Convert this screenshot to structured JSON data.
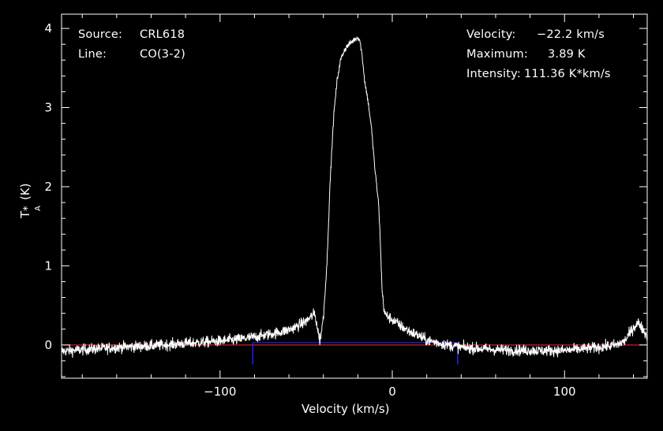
{
  "info_left": {
    "source_label": "Source:",
    "source_value": "CRL618",
    "line_label": "Line:",
    "line_value": "CO(3-2)"
  },
  "info_right": {
    "velocity_label": "Velocity:",
    "velocity_value": "−22.2 km/s",
    "maximum_label": "Maximum:",
    "maximum_value": "3.89 K",
    "intensity_label": "Intensity:",
    "intensity_value": "111.36 K*km/s"
  },
  "chart_data": {
    "type": "line",
    "xlabel": "Velocity (km/s)",
    "ylabel_main": "T",
    "ylabel_sup": "*",
    "ylabel_sub": "A",
    "ylabel_unit": "(K)",
    "xlim": [
      -192,
      148
    ],
    "ylim": [
      -0.42,
      4.18
    ],
    "x_ticks": [
      -100,
      0,
      100
    ],
    "x_tick_labels": [
      "−100",
      "0",
      "100"
    ],
    "y_ticks": [
      0,
      1,
      2,
      3,
      4
    ],
    "y_tick_labels": [
      "0",
      "1",
      "2",
      "3",
      "4"
    ],
    "series": [
      {
        "color": "#ffffff",
        "noise": 0.05,
        "x": [
          -192,
          -180,
          -160,
          -140,
          -120,
          -100,
          -90,
          -80,
          -70,
          -60,
          -55,
          -50,
          -47,
          -45,
          -43,
          -42,
          -40,
          -38,
          -36,
          -34,
          -32,
          -30,
          -28,
          -26,
          -24,
          -22,
          -20,
          -19,
          -18,
          -17,
          -16,
          -14,
          -12,
          -10,
          -8,
          -7,
          -6,
          -5,
          -4,
          0,
          5,
          10,
          15,
          20,
          30,
          40,
          60,
          80,
          100,
          120,
          130,
          135,
          140,
          143,
          146,
          148
        ],
        "y": [
          -0.08,
          -0.06,
          -0.03,
          -0.01,
          0.02,
          0.05,
          0.07,
          0.1,
          0.14,
          0.19,
          0.24,
          0.3,
          0.36,
          0.4,
          0.16,
          0.05,
          0.35,
          1.0,
          2.1,
          2.9,
          3.35,
          3.6,
          3.72,
          3.78,
          3.82,
          3.86,
          3.89,
          3.86,
          3.74,
          3.55,
          3.33,
          3.07,
          2.72,
          2.2,
          1.8,
          1.35,
          0.72,
          0.48,
          0.38,
          0.32,
          0.24,
          0.17,
          0.12,
          0.06,
          0.01,
          -0.03,
          -0.06,
          -0.07,
          -0.07,
          -0.03,
          0.0,
          0.05,
          0.22,
          0.28,
          0.18,
          0.1
        ]
      }
    ],
    "baseline": {
      "y": 0,
      "color": "#ff2a2a"
    },
    "window": {
      "x": [
        -81,
        38
      ],
      "y": 0.03,
      "color": "#2222ff"
    }
  }
}
